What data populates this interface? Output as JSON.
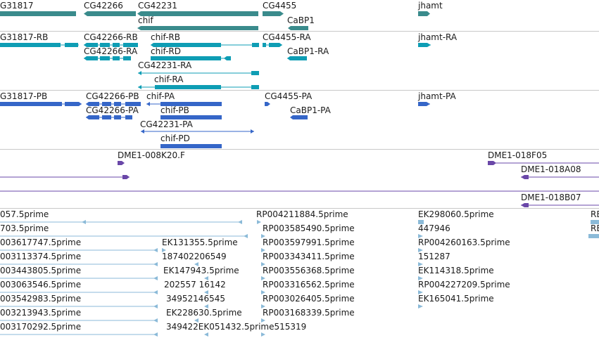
{
  "colors": {
    "gene": "#3a8b8c",
    "transcript_flybase": "#0e9db4",
    "transcript_refseq": "#3566c8",
    "clone": "#6a47a8",
    "est": "#8bbad8",
    "separator": "#c8c8c8",
    "background": "#ffffff"
  },
  "tracks": {
    "genes": {
      "labels": [
        "G31817",
        "CG42266",
        "CG42231",
        "CG4455",
        "jhamt",
        "chif",
        "CaBP1"
      ]
    },
    "flybase_transcripts": {
      "labels": [
        "G31817-RB",
        "CG42266-RB",
        "chif-RB",
        "CG4455-RA",
        "jhamt-RA",
        "CG42266-RA",
        "chif-RD",
        "CaBP1-RA",
        "CG42231-RA",
        "chif-RA"
      ]
    },
    "refseq_transcripts": {
      "labels": [
        "G31817-PB",
        "CG42266-PB",
        "chif-PA",
        "CG4455-PA",
        "jhamt-PA",
        "CG42266-PA",
        "chif-PB",
        "CaBP1-PA",
        "CG42231-PA",
        "chif-PD"
      ]
    },
    "clones": {
      "labels": [
        "DME1-008K20.F",
        "DME1-018F05",
        "DME1-018A08",
        "DME1-018B07"
      ]
    },
    "ests": {
      "labels": [
        "057.5prime",
        "RP004211884.5prime",
        "EK298060.5prime",
        "RE",
        "703.5prime",
        "RP003585490.5prime",
        "447946",
        "RE",
        "003617747.5prime",
        "EK131355.5prime",
        "RP003597991.5prime",
        "RP004260163.5prime",
        "003113374.5prime",
        "187402206549",
        "RP003343411.5prime",
        "151287",
        "003443805.5prime",
        "EK147943.5prime",
        "RP003556368.5prime",
        "EK114318.5prime",
        "003063546.5prime",
        "202557 16142",
        "RP003316562.5prime",
        "RP004227209.5prime",
        "003542983.5prime",
        "34952146545",
        "RP003026405.5prime",
        "EK165041.5prime",
        "003213943.5prime",
        "EK228630.5prime",
        "RP003168339.5prime",
        "003170292.5prime",
        "349422EK051432.5prime515319"
      ]
    }
  }
}
